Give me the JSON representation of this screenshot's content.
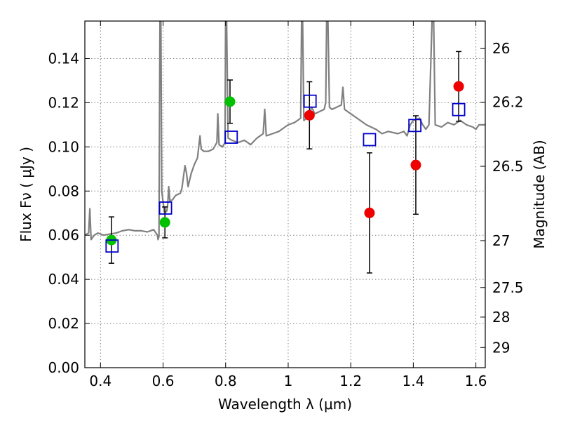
{
  "chart_data": {
    "type": "scatter",
    "xlabel": "Wavelength  λ (μm)",
    "ylabel": "Flux  Fν  ( μJy )",
    "ylabel_right": "Magnitude (AB)",
    "xlim": [
      0.35,
      1.63
    ],
    "ylim": [
      0.0,
      0.157
    ],
    "grid": true,
    "x_ticks": [
      0.4,
      0.6,
      0.8,
      1.0,
      1.2,
      1.4,
      1.6
    ],
    "x_tick_labels": [
      "0.4",
      "0.6",
      "0.8",
      "1",
      "1.2",
      "1.4",
      "1.6"
    ],
    "y_ticks": [
      0.0,
      0.02,
      0.04,
      0.06,
      0.08,
      0.1,
      0.12,
      0.14
    ],
    "y_tick_labels": [
      "0.00",
      "0.02",
      "0.04",
      "0.06",
      "0.08",
      "0.10",
      "0.12",
      "0.14"
    ],
    "right_ticks": [
      {
        "label": "26",
        "mag": 26.0
      },
      {
        "label": "26.2",
        "mag": 26.2
      },
      {
        "label": "26.5",
        "mag": 26.5
      },
      {
        "label": "27",
        "mag": 27.0
      },
      {
        "label": "27.5",
        "mag": 27.5
      },
      {
        "label": "28",
        "mag": 28.0
      },
      {
        "label": "29",
        "mag": 29.0
      }
    ],
    "colors": {
      "spectrum": "#808080",
      "green_points": "#00c000",
      "red_points": "#ee0000",
      "model_squares": "#0000cc",
      "errorbars": "#000000",
      "grid": "#7f7f7f"
    },
    "series": [
      {
        "marker": "circle-green",
        "points": [
          {
            "x": 0.435,
            "y": 0.0578,
            "err": 0.0105
          },
          {
            "x": 0.606,
            "y": 0.0658,
            "err": 0.007
          },
          {
            "x": 0.814,
            "y": 0.1205,
            "err": 0.0098
          }
        ]
      },
      {
        "marker": "circle-red",
        "points": [
          {
            "x": 1.068,
            "y": 0.1143,
            "err": 0.0152
          },
          {
            "x": 1.26,
            "y": 0.0701,
            "err": 0.0272
          },
          {
            "x": 1.408,
            "y": 0.0918,
            "err": 0.0223
          },
          {
            "x": 1.545,
            "y": 0.1274,
            "err": 0.0158
          }
        ]
      },
      {
        "marker": "square-blue",
        "points": [
          {
            "x": 0.437,
            "y": 0.0551
          },
          {
            "x": 0.608,
            "y": 0.0723
          },
          {
            "x": 0.818,
            "y": 0.1044
          },
          {
            "x": 1.07,
            "y": 0.1207
          },
          {
            "x": 1.26,
            "y": 0.1033
          },
          {
            "x": 1.405,
            "y": 0.1097
          },
          {
            "x": 1.545,
            "y": 0.1169
          }
        ]
      }
    ],
    "spectrum": [
      [
        0.35,
        0.06
      ],
      [
        0.362,
        0.061
      ],
      [
        0.366,
        0.072
      ],
      [
        0.37,
        0.058
      ],
      [
        0.38,
        0.06
      ],
      [
        0.392,
        0.061
      ],
      [
        0.41,
        0.06
      ],
      [
        0.43,
        0.0605
      ],
      [
        0.45,
        0.061
      ],
      [
        0.47,
        0.062
      ],
      [
        0.49,
        0.0625
      ],
      [
        0.51,
        0.062
      ],
      [
        0.53,
        0.062
      ],
      [
        0.55,
        0.0615
      ],
      [
        0.57,
        0.0625
      ],
      [
        0.582,
        0.06
      ],
      [
        0.584,
        0.058
      ],
      [
        0.587,
        0.0595
      ],
      [
        0.59,
        0.158
      ],
      [
        0.593,
        0.158
      ],
      [
        0.596,
        0.08
      ],
      [
        0.6,
        0.075
      ],
      [
        0.605,
        0.07
      ],
      [
        0.612,
        0.071
      ],
      [
        0.615,
        0.074
      ],
      [
        0.618,
        0.082
      ],
      [
        0.622,
        0.0755
      ],
      [
        0.63,
        0.076
      ],
      [
        0.64,
        0.078
      ],
      [
        0.655,
        0.079
      ],
      [
        0.66,
        0.081
      ],
      [
        0.67,
        0.0915
      ],
      [
        0.675,
        0.088
      ],
      [
        0.68,
        0.082
      ],
      [
        0.69,
        0.088
      ],
      [
        0.7,
        0.092
      ],
      [
        0.71,
        0.095
      ],
      [
        0.718,
        0.105
      ],
      [
        0.722,
        0.099
      ],
      [
        0.73,
        0.098
      ],
      [
        0.745,
        0.098
      ],
      [
        0.76,
        0.099
      ],
      [
        0.772,
        0.102
      ],
      [
        0.775,
        0.115
      ],
      [
        0.779,
        0.101
      ],
      [
        0.79,
        0.1
      ],
      [
        0.798,
        0.102
      ],
      [
        0.8,
        0.158
      ],
      [
        0.803,
        0.158
      ],
      [
        0.808,
        0.104
      ],
      [
        0.82,
        0.103
      ],
      [
        0.84,
        0.102
      ],
      [
        0.86,
        0.103
      ],
      [
        0.88,
        0.101
      ],
      [
        0.9,
        0.104
      ],
      [
        0.92,
        0.106
      ],
      [
        0.925,
        0.117
      ],
      [
        0.93,
        0.105
      ],
      [
        0.95,
        0.106
      ],
      [
        0.97,
        0.107
      ],
      [
        0.99,
        0.109
      ],
      [
        1.0,
        0.11
      ],
      [
        1.02,
        0.111
      ],
      [
        1.03,
        0.112
      ],
      [
        1.04,
        0.113
      ],
      [
        1.043,
        0.158
      ],
      [
        1.046,
        0.158
      ],
      [
        1.05,
        0.112
      ],
      [
        1.06,
        0.113
      ],
      [
        1.07,
        0.116
      ],
      [
        1.075,
        0.118
      ],
      [
        1.085,
        0.115
      ],
      [
        1.1,
        0.116
      ],
      [
        1.115,
        0.117
      ],
      [
        1.12,
        0.12
      ],
      [
        1.123,
        0.158
      ],
      [
        1.127,
        0.158
      ],
      [
        1.132,
        0.118
      ],
      [
        1.14,
        0.117
      ],
      [
        1.155,
        0.118
      ],
      [
        1.17,
        0.119
      ],
      [
        1.175,
        0.127
      ],
      [
        1.18,
        0.117
      ],
      [
        1.2,
        0.115
      ],
      [
        1.22,
        0.113
      ],
      [
        1.25,
        0.11
      ],
      [
        1.28,
        0.108
      ],
      [
        1.3,
        0.106
      ],
      [
        1.32,
        0.107
      ],
      [
        1.35,
        0.106
      ],
      [
        1.37,
        0.107
      ],
      [
        1.38,
        0.105
      ],
      [
        1.39,
        0.11
      ],
      [
        1.4,
        0.112
      ],
      [
        1.42,
        0.113
      ],
      [
        1.43,
        0.11
      ],
      [
        1.44,
        0.108
      ],
      [
        1.45,
        0.11
      ],
      [
        1.46,
        0.158
      ],
      [
        1.465,
        0.158
      ],
      [
        1.47,
        0.11
      ],
      [
        1.49,
        0.109
      ],
      [
        1.51,
        0.111
      ],
      [
        1.53,
        0.11
      ],
      [
        1.55,
        0.112
      ],
      [
        1.57,
        0.11
      ],
      [
        1.59,
        0.109
      ],
      [
        1.6,
        0.108
      ],
      [
        1.61,
        0.11
      ],
      [
        1.63,
        0.11
      ]
    ]
  }
}
